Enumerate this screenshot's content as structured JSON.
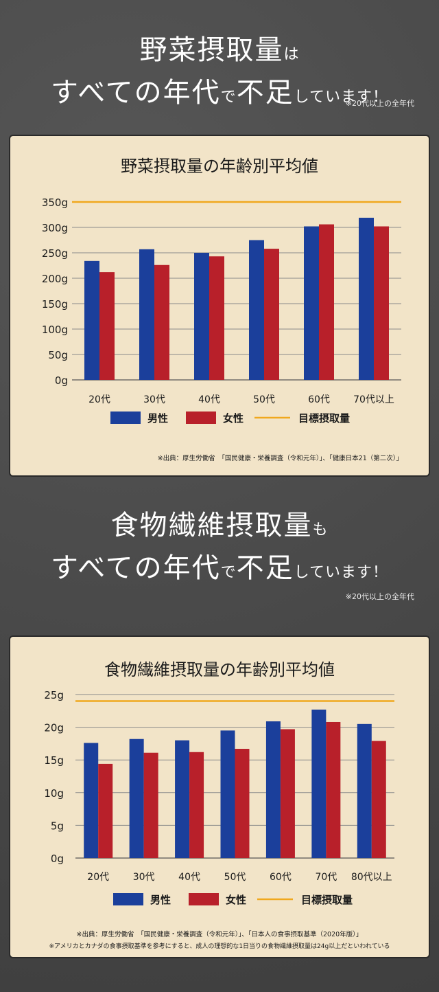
{
  "section1": {
    "headline": {
      "line1_main": "野菜摂取量",
      "line1_particle": "は",
      "line2_a": "すべての年代",
      "line2_b": "で",
      "line2_c": "不足",
      "line2_d": "しています！"
    },
    "note": "※20代以上の全年代"
  },
  "section2": {
    "headline": {
      "line1_main": "食物繊維摂取量",
      "line1_particle": "も",
      "line2_a": "すべての年代",
      "line2_b": "で",
      "line2_c": "不足",
      "line2_d": "しています！"
    },
    "note": "※20代以上の全年代"
  },
  "colors": {
    "male": "#1b3f9b",
    "female": "#b8202a",
    "target": "#f0a81e",
    "grid": "#8a8a8a"
  },
  "chart_data": [
    {
      "type": "bar",
      "title": "野菜摂取量の年齢別平均値",
      "categories": [
        "20代",
        "30代",
        "40代",
        "50代",
        "60代",
        "70代以上"
      ],
      "series": [
        {
          "name": "男性",
          "values": [
            234,
            257,
            250,
            275,
            302,
            319
          ]
        },
        {
          "name": "女性",
          "values": [
            212,
            226,
            243,
            258,
            306,
            302
          ]
        }
      ],
      "target": {
        "name": "目標摂取量",
        "value": 350
      },
      "yticks": [
        "0g",
        "50g",
        "100g",
        "150g",
        "200g",
        "250g",
        "300g",
        "350g"
      ],
      "ylim": [
        0,
        350
      ],
      "grid": true,
      "legend": "bottom",
      "source": "※出典：厚生労働省　「国民健康・栄養調査（令和元年）」、「健康日本21（第二次）」"
    },
    {
      "type": "bar",
      "title": "食物繊維摂取量の年齢別平均値",
      "categories": [
        "20代",
        "30代",
        "40代",
        "50代",
        "60代",
        "70代",
        "80代以上"
      ],
      "series": [
        {
          "name": "男性",
          "values": [
            17.6,
            18.2,
            18.0,
            19.5,
            20.9,
            22.7,
            20.5
          ]
        },
        {
          "name": "女性",
          "values": [
            14.4,
            16.1,
            16.2,
            16.7,
            19.7,
            20.8,
            17.9
          ]
        }
      ],
      "target": {
        "name": "目標摂取量",
        "value": 24
      },
      "yticks": [
        "0g",
        "5g",
        "10g",
        "15g",
        "20g",
        "25g"
      ],
      "ylim": [
        0,
        25
      ],
      "grid": true,
      "legend": "bottom",
      "source": "※出典：厚生労働省　「国民健康・栄養調査（令和元年）」、「日本人の食事摂取基準（2020年版）」",
      "footnote": "※アメリカとカナダの食事摂取基準を参考にすると、成人の理想的な1日当りの食物繊維摂取量は24g以上だといわれている"
    }
  ]
}
